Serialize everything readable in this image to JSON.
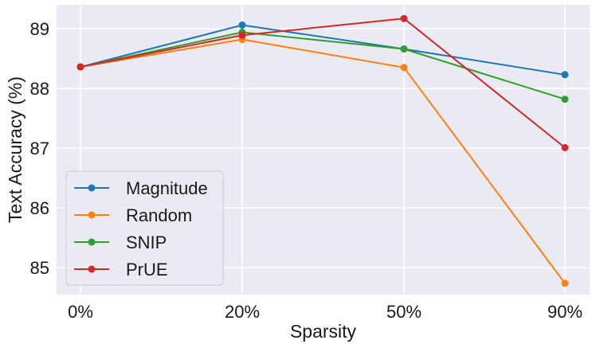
{
  "chart_data": {
    "type": "line",
    "title": "",
    "xlabel": "Sparsity",
    "ylabel": "Text Accuracy (%)",
    "categories": [
      "0%",
      "20%",
      "50%",
      "90%"
    ],
    "ylim": [
      84.55,
      89.4
    ],
    "yticks": [
      85,
      86,
      87,
      88,
      89
    ],
    "grid": true,
    "legend_position": "lower-left",
    "series": [
      {
        "name": "Magnitude",
        "color": "#1f77b4",
        "values": [
          88.36,
          89.06,
          88.66,
          88.23
        ]
      },
      {
        "name": "Random",
        "color": "#ff7f0e",
        "values": [
          88.36,
          88.82,
          88.35,
          84.74
        ]
      },
      {
        "name": "SNIP",
        "color": "#2ca02c",
        "values": [
          88.36,
          88.94,
          88.66,
          87.82
        ]
      },
      {
        "name": "PrUE",
        "color": "#d62728",
        "values": [
          88.36,
          88.89,
          89.17,
          87.01
        ]
      }
    ]
  }
}
